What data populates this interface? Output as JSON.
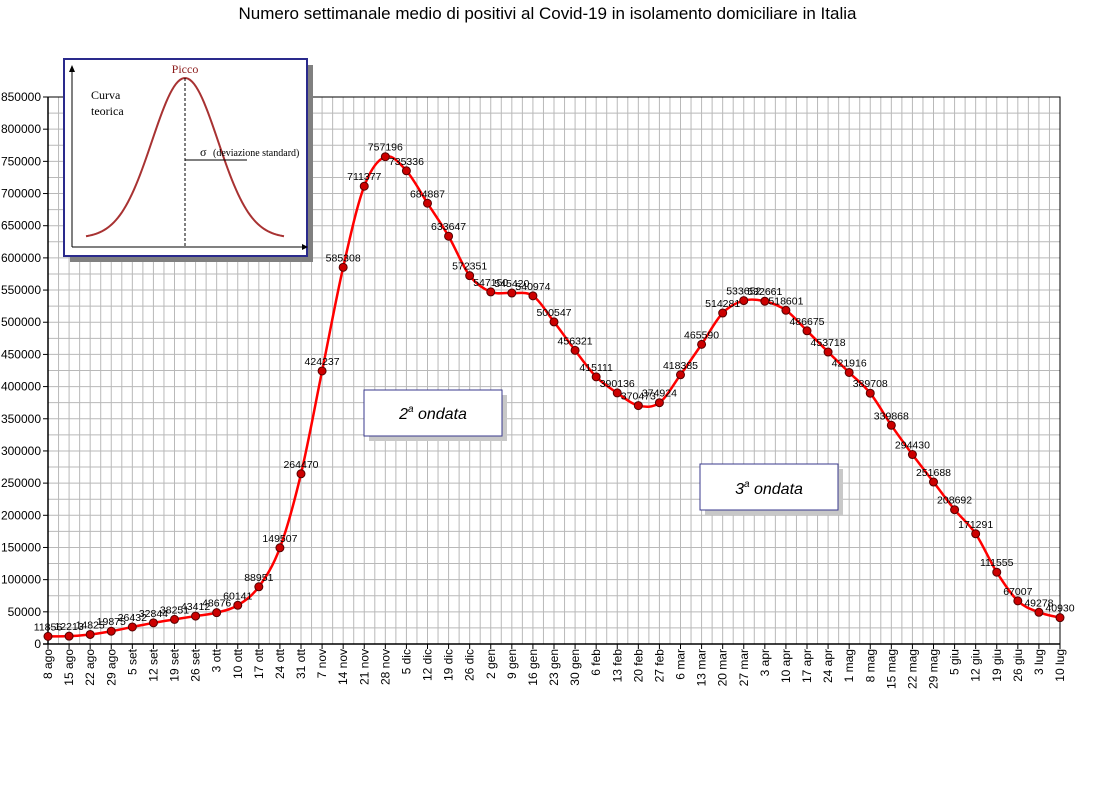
{
  "chart_data": {
    "type": "line",
    "title": "Numero settimanale medio di positivi al Covid-19  in isolamento domiciliare in Italia",
    "xlabel": "",
    "ylabel": "",
    "ylim": [
      0,
      850000
    ],
    "yticks": [
      0,
      50000,
      100000,
      150000,
      200000,
      250000,
      300000,
      350000,
      400000,
      450000,
      500000,
      550000,
      600000,
      650000,
      700000,
      750000,
      800000,
      850000
    ],
    "grid": true,
    "line_color": "#ff0000",
    "marker_color": "#cc0000",
    "categories": [
      "8 ago",
      "15 ago",
      "22 ago",
      "29 ago",
      "5 set",
      "12 set",
      "19 set",
      "26 set",
      "3 ott",
      "10 ott",
      "17 ott",
      "24 ott",
      "31 ott",
      "7 nov",
      "14 nov",
      "21 nov",
      "28 nov",
      "5 dic",
      "12 dic",
      "19 dic",
      "26 dic",
      "2 gen",
      "9 gen",
      "16 gen",
      "23 gen",
      "30 gen",
      "6 feb",
      "13 feb",
      "20 feb",
      "27 feb",
      "6 mar",
      "13 mar",
      "20 mar",
      "27 mar",
      "3 apr",
      "10 apr",
      "17 apr",
      "24 apr",
      "1 mag",
      "8 mag",
      "15 mag",
      "22 mag",
      "29 mag",
      "5 giu",
      "12 giu",
      "19 giu",
      "26 giu",
      "3 lug",
      "10 lug"
    ],
    "values": [
      11856,
      12213,
      14825,
      19875,
      26432,
      32844,
      38251,
      43412,
      48676,
      60141,
      88951,
      149507,
      264470,
      424237,
      585308,
      711377,
      757196,
      735336,
      684887,
      633647,
      572351,
      547150,
      545420,
      540974,
      500547,
      456321,
      415111,
      390136,
      370473,
      374924,
      418385,
      465590,
      514281,
      533652,
      532661,
      518601,
      486675,
      453718,
      421916,
      389708,
      339868,
      294430,
      251688,
      208692,
      171291,
      111555,
      67007,
      49278,
      40930
    ],
    "data_labels": [
      "11856",
      "12213",
      "14825",
      "19875",
      "26432",
      "32844",
      "38251",
      "43412",
      "48676",
      "60141",
      "88951",
      "149507",
      "264470",
      "424237",
      "585308",
      "711377",
      "757196",
      "735336",
      "684887",
      "633647",
      "572351",
      "547150",
      "545420",
      "540974",
      "500547",
      "456321",
      "415111",
      "390136",
      "370473",
      "374924",
      "418385",
      "465590",
      "514281",
      "533652",
      "532661",
      "518601",
      "486675",
      "453718",
      "421916",
      "389708",
      "339868",
      "294430",
      "251688",
      "208692",
      "171291",
      "111555",
      "67007",
      "49278",
      "40930"
    ],
    "annotations": [
      {
        "id": "wave2",
        "text": "ondata",
        "number": "2",
        "sup": "a"
      },
      {
        "id": "wave3",
        "text": "ondata",
        "number": "3",
        "sup": "a"
      }
    ],
    "inset": {
      "curve_label_line1": "Curva",
      "curve_label_line2": "teorica",
      "peak_label": "Picco",
      "sigma_symbol": "σ",
      "sigma_label": "(deviazione standard)"
    }
  }
}
